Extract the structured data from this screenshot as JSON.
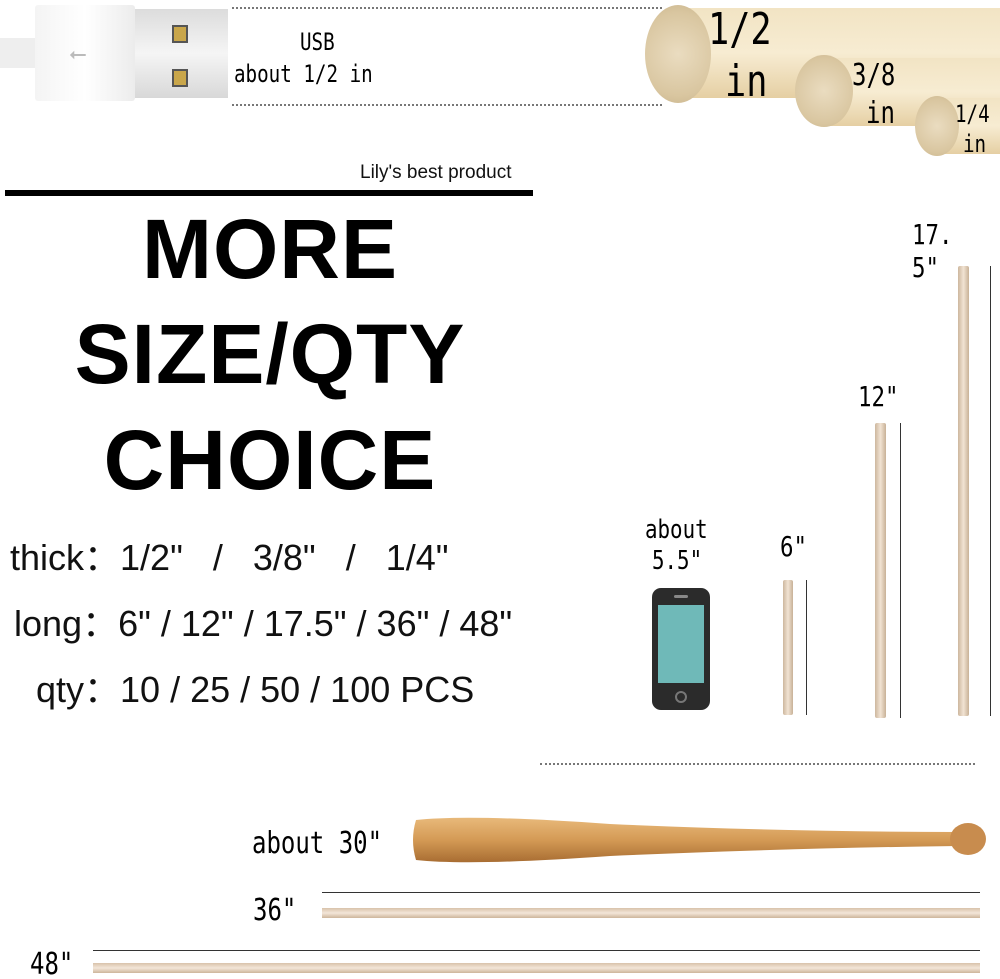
{
  "usb": {
    "title": "USB",
    "size": "about 1/2 in"
  },
  "thickness_labels": [
    {
      "value": "1/2",
      "unit": "in"
    },
    {
      "value": "3/8",
      "unit": "in"
    },
    {
      "value": "1/4",
      "unit": "in"
    }
  ],
  "brand_line": "Lily's best product",
  "headline": [
    "MORE",
    "SIZE/QTY",
    "CHOICE"
  ],
  "specs": {
    "thick": "thick：1/2\"   /   3/8\"   /   1/4\"",
    "long": "long：6\" / 12\" / 17.5\" / 36\" / 48\"",
    "qty": "qty：10 / 25 / 50 / 100 PCS"
  },
  "phone": {
    "label1": "about",
    "label2": "5.5\"",
    "screen_color": "#6fb9b8"
  },
  "lengths": {
    "l6": "6\"",
    "l12": "12\"",
    "l17": "17. 5\"",
    "l36": "36\"",
    "l48": "48\""
  },
  "bat_label": "about  30\""
}
